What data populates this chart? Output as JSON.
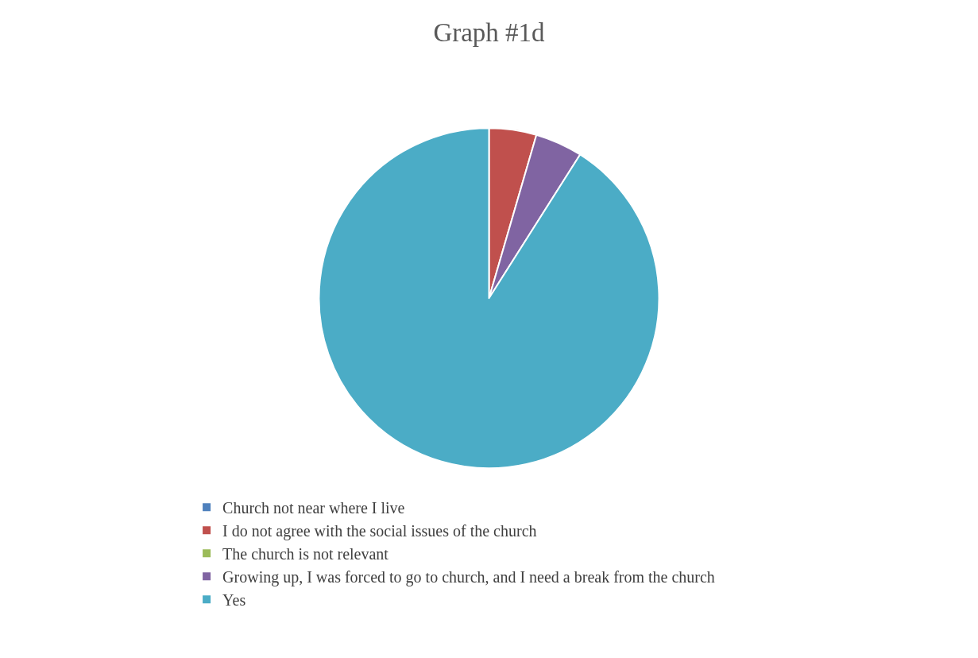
{
  "chart_data": {
    "type": "pie",
    "title": "Graph #1d",
    "categories": [
      "Church not near where I live",
      "I do not agree with the social issues of the church",
      "The church is not relevant",
      "Growing up, I was forced to go to church, and I need a break from the church",
      "Yes"
    ],
    "values": [
      0,
      4.5,
      0,
      4.5,
      91
    ],
    "colors": [
      "#4f81bd",
      "#c0504d",
      "#9bbb59",
      "#8064a2",
      "#4bacc6"
    ],
    "legend": "bottom"
  }
}
